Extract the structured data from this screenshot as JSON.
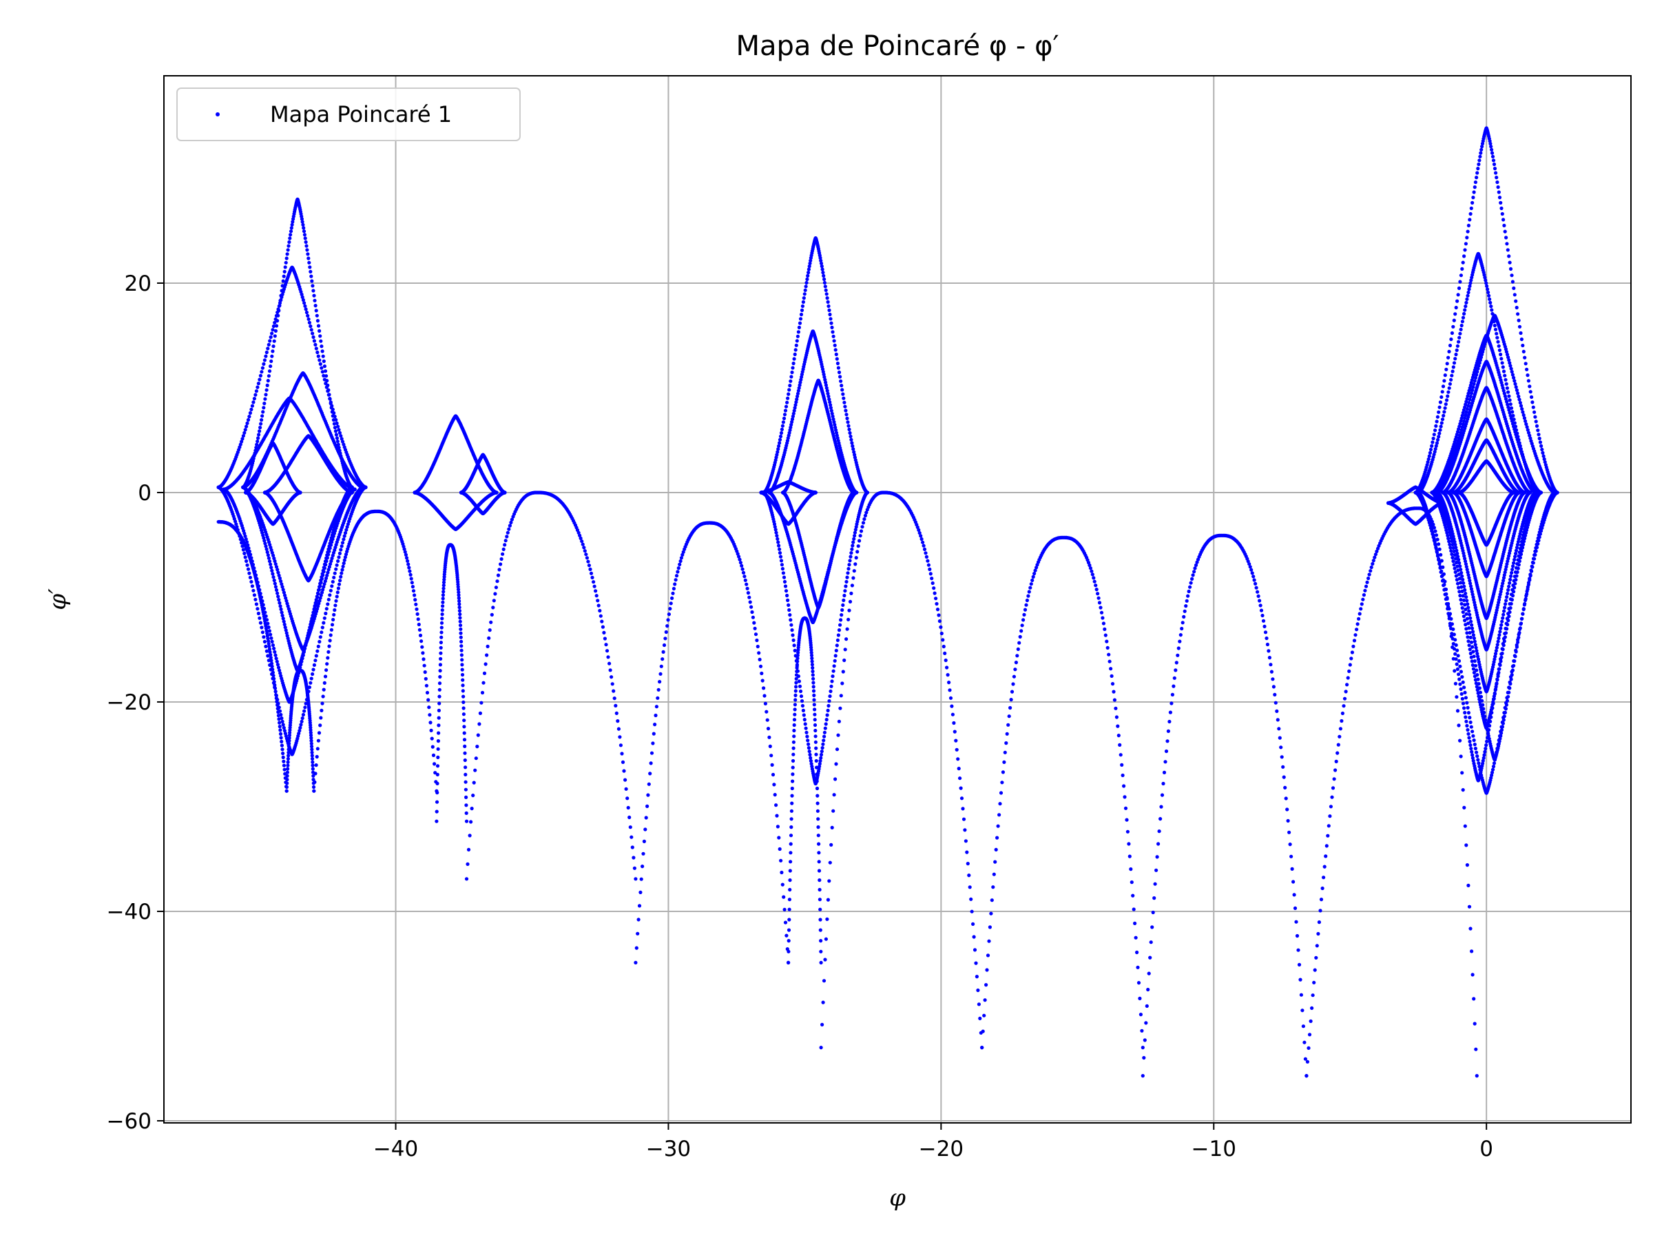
{
  "chart_data": {
    "type": "scatter",
    "title": "Mapa de Poincaré φ - φ′",
    "xlabel": "φ",
    "ylabel": "φ′",
    "xlim": [
      -48.5,
      5.3
    ],
    "ylim": [
      -60.2,
      39.8
    ],
    "xticks": [
      -40,
      -30,
      -20,
      -10,
      0
    ],
    "xtick_labels": [
      "−40",
      "−30",
      "−20",
      "−10",
      "0"
    ],
    "yticks": [
      -60,
      -40,
      -20,
      0,
      20
    ],
    "ytick_labels": [
      "−60",
      "−40",
      "−20",
      "0",
      "20"
    ],
    "grid": true,
    "legend_position": "top-left",
    "series": [
      {
        "name": "Mapa Poincaré 1",
        "color": "#0000ff",
        "marker": "point",
        "arches": [
          {
            "x_from": -46.5,
            "x_to": -44.0,
            "peak_x": -46.5,
            "peak_y": -2.8,
            "min_y": -28.5
          },
          {
            "x_from": -44.0,
            "x_to": -43.0,
            "peak_x": -43.5,
            "peak_y": -17.0,
            "min_y": -28.5
          },
          {
            "x_from": -43.0,
            "x_to": -38.5,
            "peak_x": -40.7,
            "peak_y": -1.8,
            "min_y": -28.5
          },
          {
            "x_from": -38.5,
            "x_to": -37.4,
            "peak_x": -38.0,
            "peak_y": -5.0,
            "min_y": -31.4
          },
          {
            "x_from": -37.4,
            "x_to": -31.2,
            "peak_x": -34.8,
            "peak_y": 0.0,
            "min_y": -36.9
          },
          {
            "x_from": -31.2,
            "x_to": -25.6,
            "peak_x": -28.5,
            "peak_y": -2.9,
            "min_y": -44.9
          },
          {
            "x_from": -25.6,
            "x_to": -24.4,
            "peak_x": -25.0,
            "peak_y": -12.0,
            "min_y": -44.9
          },
          {
            "x_from": -24.4,
            "x_to": -18.5,
            "peak_x": -22.1,
            "peak_y": 0.0,
            "min_y": -53.0
          },
          {
            "x_from": -18.5,
            "x_to": -12.6,
            "peak_x": -15.5,
            "peak_y": -4.3,
            "min_y": -53.0
          },
          {
            "x_from": -12.6,
            "x_to": -6.6,
            "peak_x": -9.7,
            "peak_y": -4.1,
            "min_y": -55.7
          },
          {
            "x_from": -6.6,
            "x_to": -0.35,
            "peak_x": -2.5,
            "peak_y": -1.5,
            "min_y": -55.7
          }
        ],
        "loops": [
          {
            "cx": -43.6,
            "cy": 0.5,
            "ax": 2.0,
            "top": 28.0,
            "bottom": -17.0
          },
          {
            "cx": -43.8,
            "cy": 0.5,
            "ax": 2.7,
            "top": 21.5,
            "bottom": -25.0
          },
          {
            "cx": -43.4,
            "cy": 0.5,
            "ax": 2.2,
            "top": 11.4,
            "bottom": -15.0
          },
          {
            "cx": -43.2,
            "cy": 0.0,
            "ax": 1.6,
            "top": 5.4,
            "bottom": -8.4
          },
          {
            "cx": -44.5,
            "cy": 0.0,
            "ax": 1.0,
            "top": 4.7,
            "bottom": -3.0
          },
          {
            "cx": -43.9,
            "cy": 0.3,
            "ax": 2.4,
            "top": 9.0,
            "bottom": -20.0
          },
          {
            "cx": -37.8,
            "cy": 0.0,
            "ax": 1.5,
            "top": 7.3,
            "bottom": -3.5
          },
          {
            "cx": -36.8,
            "cy": 0.0,
            "ax": 0.8,
            "top": 3.6,
            "bottom": -2.0
          },
          {
            "cx": -24.6,
            "cy": 0.0,
            "ax": 1.9,
            "top": 24.3,
            "bottom": -27.8
          },
          {
            "cx": -24.7,
            "cy": 0.0,
            "ax": 1.6,
            "top": 15.4,
            "bottom": -12.4
          },
          {
            "cx": -24.5,
            "cy": 0.0,
            "ax": 1.3,
            "top": 10.7,
            "bottom": -11.0
          },
          {
            "cx": -25.6,
            "cy": 0.0,
            "ax": 1.0,
            "top": 1.0,
            "bottom": -3.0
          },
          {
            "cx": 0.0,
            "cy": 0.0,
            "ax": 2.6,
            "top": 34.8,
            "bottom": -28.7
          },
          {
            "cx": -0.3,
            "cy": 0.0,
            "ax": 2.2,
            "top": 22.8,
            "bottom": -27.5
          },
          {
            "cx": 0.3,
            "cy": 0.0,
            "ax": 2.2,
            "top": 16.9,
            "bottom": -25.5
          },
          {
            "cx": 0.0,
            "cy": 0.0,
            "ax": 2.0,
            "top": 15.0,
            "bottom": -22.5
          },
          {
            "cx": 0.0,
            "cy": 0.0,
            "ax": 1.8,
            "top": 12.5,
            "bottom": -19.0
          },
          {
            "cx": 0.0,
            "cy": 0.0,
            "ax": 1.6,
            "top": 10.0,
            "bottom": -15.0
          },
          {
            "cx": 0.0,
            "cy": 0.0,
            "ax": 1.4,
            "top": 7.0,
            "bottom": -12.0
          },
          {
            "cx": 0.0,
            "cy": 0.0,
            "ax": 1.2,
            "top": 5.0,
            "bottom": -8.0
          },
          {
            "cx": 0.0,
            "cy": 0.0,
            "ax": 1.0,
            "top": 3.0,
            "bottom": -5.0
          },
          {
            "cx": -2.6,
            "cy": -1.0,
            "ax": 1.0,
            "top": 0.5,
            "bottom": -3.0
          }
        ]
      }
    ]
  }
}
